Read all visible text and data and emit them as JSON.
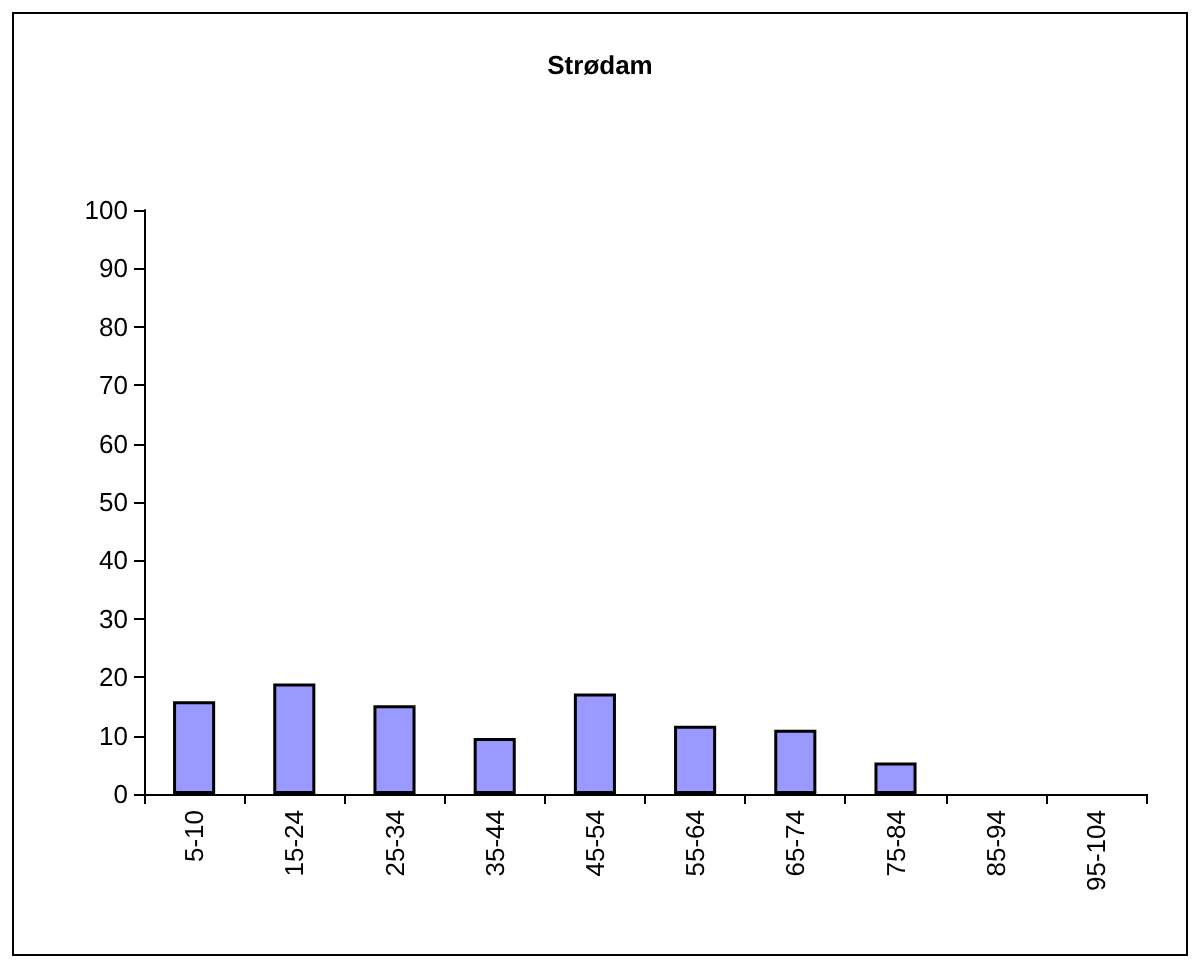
{
  "chart_data": {
    "type": "bar",
    "title": "Strødam",
    "categories": [
      "5-10",
      "15-24",
      "25-34",
      "35-44",
      "45-54",
      "55-64",
      "65-74",
      "75-84",
      "85-94",
      "95-104"
    ],
    "series": [
      {
        "color": "#9999ff",
        "values": [
          15.9,
          18.9,
          15.2,
          9.6,
          17.2,
          11.7,
          11.0,
          5.4,
          0,
          0
        ]
      }
    ],
    "ylim": [
      0,
      100
    ],
    "yticks": [
      0,
      10,
      20,
      30,
      40,
      50,
      60,
      70,
      80,
      90,
      100
    ],
    "grid": false
  }
}
